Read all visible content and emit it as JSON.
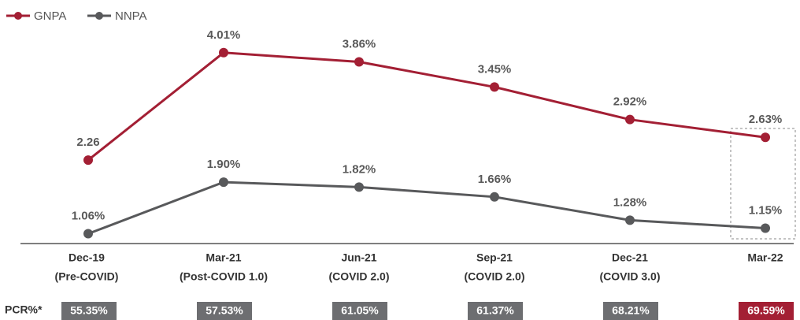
{
  "chart_data": {
    "type": "line",
    "categories": [
      [
        "Dec-19",
        "(Pre-COVID)"
      ],
      [
        "Mar-21",
        "(Post-COVID 1.0)"
      ],
      [
        "Jun-21",
        "(COVID 2.0)"
      ],
      [
        "Sep-21",
        "(COVID 2.0)"
      ],
      [
        "Dec-21",
        "(COVID 3.0)"
      ],
      [
        "Mar-22"
      ]
    ],
    "series": [
      {
        "name": "GNPA",
        "color": "#a31f34",
        "values": [
          2.26,
          4.01,
          3.86,
          3.45,
          2.92,
          2.63
        ],
        "value_labels": [
          "2.26",
          "4.01%",
          "3.86%",
          "3.45%",
          "2.92%",
          "2.63%"
        ]
      },
      {
        "name": "NNPA",
        "color": "#58595b",
        "values": [
          1.06,
          1.9,
          1.82,
          1.66,
          1.28,
          1.15
        ],
        "value_labels": [
          "1.06%",
          "1.90%",
          "1.82%",
          "1.66%",
          "1.28%",
          "1.15%"
        ]
      }
    ],
    "ylim": [
      0.9,
      4.2
    ],
    "legend": "top-left",
    "pcr": {
      "label": "PCR%*",
      "values": [
        55.35,
        57.53,
        61.05,
        61.37,
        68.21,
        69.59
      ],
      "value_labels": [
        "55.35%",
        "57.53%",
        "61.05%",
        "61.37%",
        "68.21%",
        "69.59%"
      ],
      "color": "#6d6e71",
      "highlight_color": "#a31f34"
    }
  }
}
